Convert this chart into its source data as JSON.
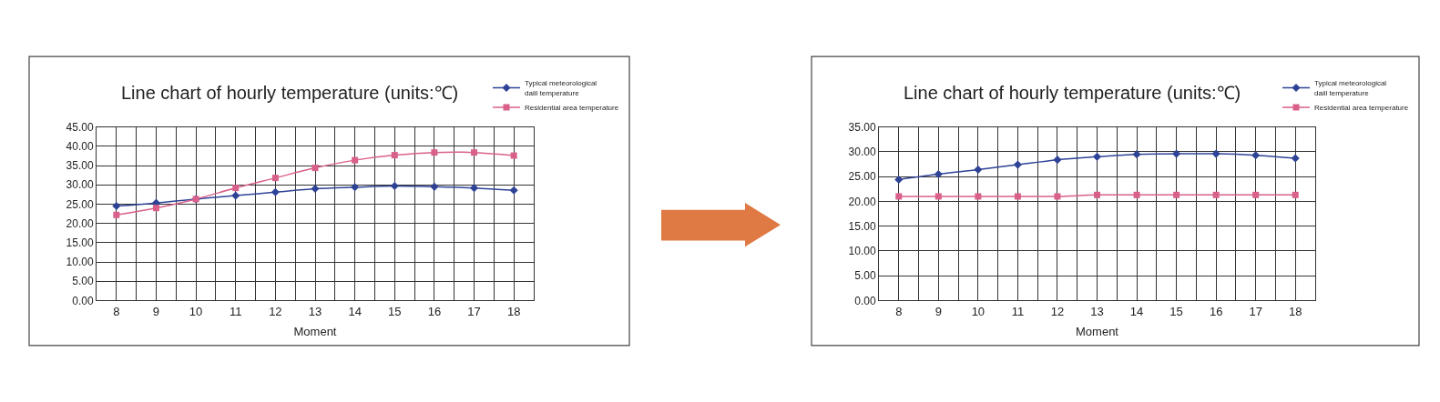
{
  "chart_data": [
    {
      "type": "line",
      "title": "Line chart of hourly temperature (units:℃)",
      "xlabel": "Moment",
      "x": [
        8,
        9,
        10,
        11,
        12,
        13,
        14,
        15,
        16,
        17,
        18
      ],
      "xlim": [
        7.5,
        18.5
      ],
      "xticks": [
        {
          "value": 7.5,
          "label": null
        },
        8,
        {
          "value": 8.5,
          "label": null
        },
        9,
        {
          "value": 9.5,
          "label": null
        },
        10,
        {
          "value": 10.5,
          "label": null
        },
        11,
        {
          "value": 11.5,
          "label": null
        },
        12,
        {
          "value": 12.5,
          "label": null
        },
        13,
        {
          "value": 13.5,
          "label": null
        },
        14,
        {
          "value": 14.5,
          "label": null
        },
        15,
        {
          "value": 15.5,
          "label": null
        },
        16,
        {
          "value": 16.5,
          "label": null
        },
        17,
        {
          "value": 17.5,
          "label": null
        },
        18,
        {
          "value": 18.5,
          "label": null
        }
      ],
      "ylim": [
        0,
        45
      ],
      "yticks": [
        {
          "value": 0,
          "label": "0.00"
        },
        {
          "value": 5,
          "label": "5.00"
        },
        {
          "value": 10,
          "label": "10.00"
        },
        {
          "value": 15,
          "label": "15.00"
        },
        {
          "value": 20,
          "label": "20.00"
        },
        {
          "value": 25,
          "label": "25.00"
        },
        {
          "value": 30,
          "label": "30.00"
        },
        {
          "value": 35,
          "label": "35.00"
        },
        {
          "value": 40,
          "label": "40.00"
        },
        {
          "value": 45,
          "label": "45.00"
        }
      ],
      "grid": true,
      "legend": "top right",
      "line_style": "solid",
      "series": [
        {
          "name": "Typical meteorological daiil temperature",
          "color": "#2f4396",
          "marker": "diamond",
          "values": [
            24.5,
            25.3,
            26.3,
            27.2,
            28.1,
            29.0,
            29.4,
            29.7,
            29.5,
            29.2,
            28.6
          ]
        },
        {
          "name": "Residential area temperature",
          "color": "#d9608a",
          "marker": "square",
          "values": [
            22.2,
            24.0,
            26.3,
            29.2,
            31.8,
            34.4,
            36.4,
            37.7,
            38.4,
            38.4,
            37.6
          ]
        }
      ]
    },
    {
      "type": "line",
      "title": "Line chart of hourly temperature (units:℃)",
      "xlabel": "Moment",
      "x": [
        8,
        9,
        10,
        11,
        12,
        13,
        14,
        15,
        16,
        17,
        18
      ],
      "xlim": [
        7.5,
        18.5
      ],
      "xticks": [
        {
          "value": 7.5,
          "label": null
        },
        8,
        {
          "value": 8.5,
          "label": null
        },
        9,
        {
          "value": 9.5,
          "label": null
        },
        10,
        {
          "value": 10.5,
          "label": null
        },
        11,
        {
          "value": 11.5,
          "label": null
        },
        12,
        {
          "value": 12.5,
          "label": null
        },
        13,
        {
          "value": 13.5,
          "label": null
        },
        14,
        {
          "value": 14.5,
          "label": null
        },
        15,
        {
          "value": 15.5,
          "label": null
        },
        16,
        {
          "value": 16.5,
          "label": null
        },
        17,
        {
          "value": 17.5,
          "label": null
        },
        18,
        {
          "value": 18.5,
          "label": null
        }
      ],
      "ylim": [
        0,
        35
      ],
      "yticks": [
        {
          "value": 0,
          "label": "0.00"
        },
        {
          "value": 5,
          "label": "5.00"
        },
        {
          "value": 10,
          "label": "10.00"
        },
        {
          "value": 15,
          "label": "15.00"
        },
        {
          "value": 20,
          "label": "20.00"
        },
        {
          "value": 25,
          "label": "25.00"
        },
        {
          "value": 30,
          "label": "30.00"
        },
        {
          "value": 35,
          "label": "35.00"
        }
      ],
      "grid": true,
      "legend": "top right",
      "line_style": "solid",
      "series": [
        {
          "name": "Typical meteorological daiil temperature",
          "color": "#2f4396",
          "marker": "diamond",
          "values": [
            24.4,
            25.5,
            26.4,
            27.4,
            28.4,
            29.0,
            29.5,
            29.6,
            29.6,
            29.3,
            28.7
          ]
        },
        {
          "name": "Residential area temperature",
          "color": "#d9608a",
          "marker": "square",
          "values": [
            21.0,
            21.0,
            21.0,
            21.0,
            21.0,
            21.3,
            21.3,
            21.3,
            21.3,
            21.3,
            21.3
          ]
        }
      ]
    }
  ]
}
